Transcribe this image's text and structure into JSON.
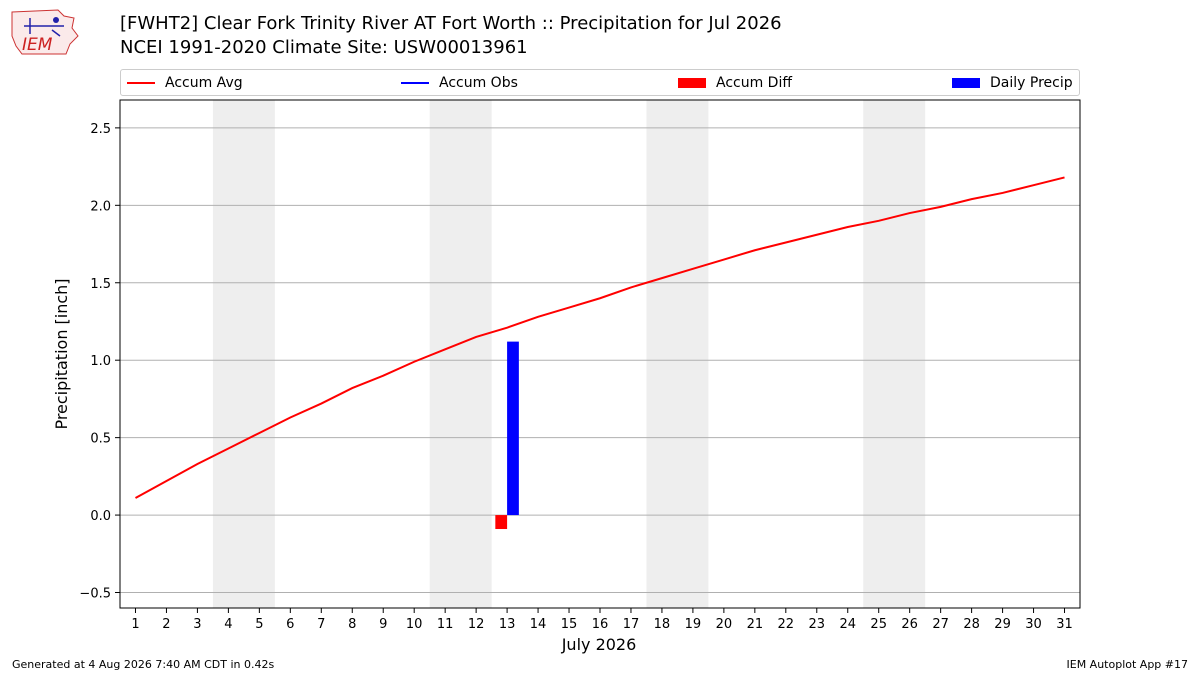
{
  "header": {
    "logo_text": "IEM",
    "title_line1": "[FWHT2] Clear Fork Trinity River  AT Fort Worth :: Precipitation for Jul 2026",
    "title_line2": "NCEI 1991-2020 Climate Site: USW00013961"
  },
  "legend": {
    "items": [
      {
        "label": "Accum Avg",
        "kind": "line",
        "color": "#ff0000"
      },
      {
        "label": "Accum Obs",
        "kind": "line",
        "color": "#0000ff"
      },
      {
        "label": "Accum Diff",
        "kind": "box",
        "color": "#ff0000"
      },
      {
        "label": "Daily Precip",
        "kind": "box",
        "color": "#0000ff"
      }
    ]
  },
  "footer": {
    "generated": "Generated at 4 Aug 2026 7:40 AM CDT in 0.42s",
    "app": "IEM Autoplot App #17"
  },
  "chart_data": {
    "type": "line",
    "xlabel": "July 2026",
    "ylabel": "Precipitation [inch]",
    "x": [
      1,
      2,
      3,
      4,
      5,
      6,
      7,
      8,
      9,
      10,
      11,
      12,
      13,
      14,
      15,
      16,
      17,
      18,
      19,
      20,
      21,
      22,
      23,
      24,
      25,
      26,
      27,
      28,
      29,
      30,
      31
    ],
    "xlim": [
      0.5,
      31.5
    ],
    "ylim": [
      -0.6,
      2.68
    ],
    "yticks": [
      -0.5,
      0.0,
      0.5,
      1.0,
      1.5,
      2.0,
      2.5
    ],
    "ytick_labels": [
      "−0.5",
      "0.0",
      "0.5",
      "1.0",
      "1.5",
      "2.0",
      "2.5"
    ],
    "grid": "horizontal",
    "legend_position": "top",
    "weekend_shading": [
      [
        3.5,
        5.5
      ],
      [
        10.5,
        12.5
      ],
      [
        17.5,
        19.5
      ],
      [
        24.5,
        26.5
      ]
    ],
    "shade_color": "#eeeeee",
    "series": [
      {
        "name": "Accum Avg",
        "kind": "line",
        "color": "#ff0000",
        "values": [
          0.11,
          0.22,
          0.33,
          0.43,
          0.53,
          0.63,
          0.72,
          0.82,
          0.9,
          0.99,
          1.07,
          1.15,
          1.21,
          1.28,
          1.34,
          1.4,
          1.47,
          1.53,
          1.59,
          1.65,
          1.71,
          1.76,
          1.81,
          1.86,
          1.9,
          1.95,
          1.99,
          2.04,
          2.08,
          2.13,
          2.18
        ]
      },
      {
        "name": "Accum Diff",
        "kind": "bar",
        "color": "#ff0000",
        "points": [
          {
            "x": 13,
            "value": -0.09
          }
        ]
      },
      {
        "name": "Daily Precip",
        "kind": "bar",
        "color": "#0000ff",
        "points": [
          {
            "x": 13,
            "value": 1.12
          }
        ]
      }
    ]
  }
}
